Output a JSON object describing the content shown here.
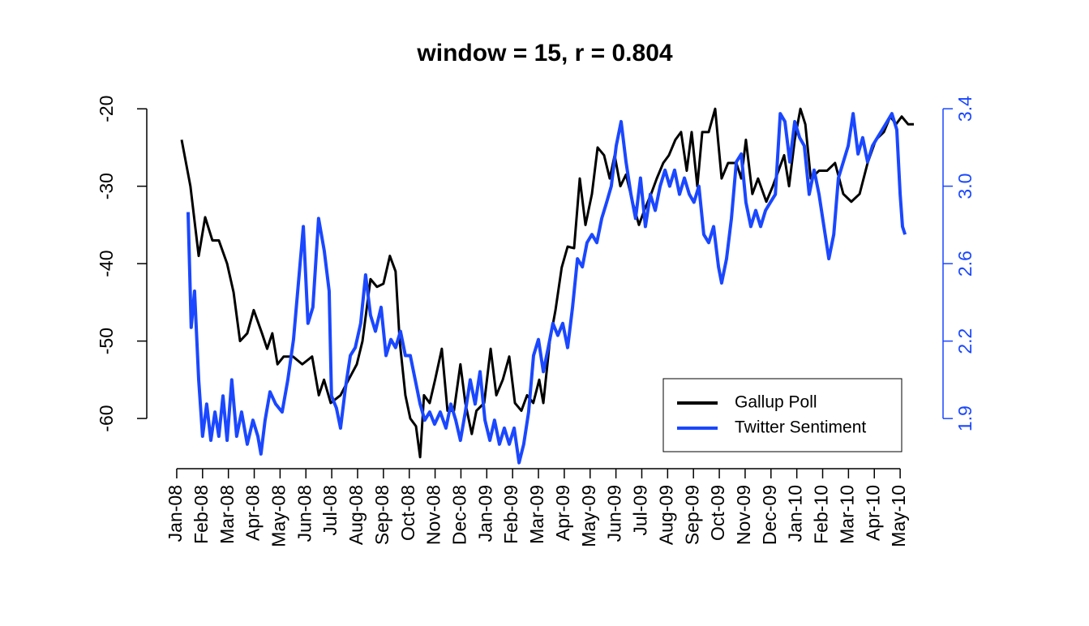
{
  "chart_data": {
    "type": "line",
    "title": "window = 15, r = 0.804",
    "xlim": [
      -0.94,
      29.66
    ],
    "xticks": [
      {
        "value": 0,
        "label": "Jan-08"
      },
      {
        "value": 1,
        "label": "Feb-08"
      },
      {
        "value": 2,
        "label": "Mar-08"
      },
      {
        "value": 3,
        "label": "Apr-08"
      },
      {
        "value": 4,
        "label": "May-08"
      },
      {
        "value": 5,
        "label": "Jun-08"
      },
      {
        "value": 6,
        "label": "Jul-08"
      },
      {
        "value": 7,
        "label": "Aug-08"
      },
      {
        "value": 8,
        "label": "Sep-08"
      },
      {
        "value": 9,
        "label": "Oct-08"
      },
      {
        "value": 10,
        "label": "Nov-08"
      },
      {
        "value": 11,
        "label": "Dec-08"
      },
      {
        "value": 12,
        "label": "Jan-09"
      },
      {
        "value": 13,
        "label": "Feb-09"
      },
      {
        "value": 14,
        "label": "Mar-09"
      },
      {
        "value": 15,
        "label": "Apr-09"
      },
      {
        "value": 16,
        "label": "May-09"
      },
      {
        "value": 17,
        "label": "Jun-09"
      },
      {
        "value": 18,
        "label": "Jul-09"
      },
      {
        "value": 19,
        "label": "Aug-09"
      },
      {
        "value": 20,
        "label": "Sep-09"
      },
      {
        "value": 21,
        "label": "Oct-09"
      },
      {
        "value": 22,
        "label": "Nov-09"
      },
      {
        "value": 23,
        "label": "Dec-09"
      },
      {
        "value": 24,
        "label": "Jan-10"
      },
      {
        "value": 25,
        "label": "Feb-10"
      },
      {
        "value": 26,
        "label": "Mar-10"
      },
      {
        "value": 27,
        "label": "Apr-10"
      },
      {
        "value": 28,
        "label": "May-10"
      }
    ],
    "ylim": [
      -66.8,
      -18.2
    ],
    "yticks": [
      -20,
      -30,
      -40,
      -50,
      -60
    ],
    "y2lim": [
      1.602,
      3.448
    ],
    "y2ticks": [
      {
        "value": 3.38,
        "label": "3.4"
      },
      {
        "value": 3.0,
        "label": "3.0"
      },
      {
        "value": 2.62,
        "label": "2.6"
      },
      {
        "value": 2.24,
        "label": "2.2"
      },
      {
        "value": 1.86,
        "label": "1.9"
      }
    ],
    "y2color": "#1a47ff",
    "legend": "bottomright",
    "series": [
      {
        "name": "Gallup Poll",
        "color": "#000000",
        "x": [
          0.19,
          0.53,
          0.85,
          1.1,
          1.38,
          1.63,
          1.95,
          2.2,
          2.45,
          2.73,
          2.98,
          3.3,
          3.5,
          3.7,
          3.9,
          4.14,
          4.5,
          4.86,
          5.24,
          5.5,
          5.7,
          5.96,
          6.34,
          6.65,
          6.97,
          7.19,
          7.5,
          7.75,
          8.0,
          8.25,
          8.47,
          8.63,
          8.85,
          9.04,
          9.26,
          9.42,
          9.57,
          9.79,
          10.0,
          10.26,
          10.48,
          10.73,
          10.98,
          11.17,
          11.42,
          11.6,
          11.9,
          12.15,
          12.37,
          12.62,
          12.87,
          13.09,
          13.34,
          13.56,
          13.8,
          14.03,
          14.19,
          14.44,
          14.66,
          14.9,
          15.13,
          15.38,
          15.6,
          15.82,
          16.07,
          16.29,
          16.54,
          16.76,
          16.95,
          17.17,
          17.39,
          17.64,
          17.89,
          18.11,
          18.36,
          18.58,
          18.83,
          19.05,
          19.3,
          19.52,
          19.74,
          19.93,
          20.15,
          20.34,
          20.59,
          20.84,
          21.09,
          21.34,
          21.66,
          21.85,
          22.03,
          22.28,
          22.5,
          22.82,
          23.07,
          23.29,
          23.51,
          23.7,
          23.92,
          24.14,
          24.33,
          24.54,
          24.86,
          25.17,
          25.48,
          25.8,
          26.11,
          26.43,
          26.74,
          27.06,
          27.37,
          27.62,
          27.84,
          28.06,
          28.31,
          28.53
        ],
        "values": [
          -24,
          -30,
          -39,
          -34,
          -37,
          -37,
          -40,
          -43.7,
          -50,
          -49,
          -46,
          -49,
          -51,
          -49,
          -53,
          -52,
          -52,
          -53,
          -52,
          -57,
          -55,
          -58,
          -57,
          -55,
          -53,
          -50,
          -42,
          -43,
          -42.6,
          -39,
          -41,
          -50,
          -57,
          -60,
          -61,
          -65,
          -57,
          -58,
          -55,
          -51,
          -59,
          -59,
          -53,
          -58,
          -62,
          -59,
          -58,
          -51,
          -57,
          -55,
          -52,
          -58,
          -59,
          -57,
          -58,
          -55,
          -58,
          -50,
          -46,
          -40.5,
          -37.8,
          -38,
          -29,
          -35,
          -31,
          -25,
          -26,
          -29,
          -26,
          -30,
          -28.5,
          -32,
          -35,
          -33,
          -31,
          -29,
          -27,
          -26,
          -24,
          -23,
          -28,
          -23,
          -30,
          -23,
          -23,
          -20,
          -29,
          -27,
          -27,
          -29,
          -24,
          -31,
          -29,
          -32,
          -30,
          -28,
          -26,
          -30,
          -24,
          -20,
          -22,
          -29,
          -28,
          -28,
          -27,
          -31,
          -32,
          -31,
          -27,
          -24,
          -23,
          -21,
          -22,
          -21,
          -22,
          -22
        ]
      },
      {
        "name": "Twitter Sentiment",
        "color": "#1a47ff",
        "axis": "y2",
        "x": [
          0.44,
          0.56,
          0.69,
          0.85,
          1.0,
          1.16,
          1.32,
          1.48,
          1.63,
          1.79,
          1.95,
          2.13,
          2.32,
          2.51,
          2.73,
          2.95,
          3.14,
          3.26,
          3.42,
          3.61,
          3.83,
          4.08,
          4.3,
          4.52,
          4.71,
          4.9,
          5.08,
          5.27,
          5.49,
          5.71,
          5.9,
          5.99,
          6.18,
          6.34,
          6.53,
          6.72,
          6.91,
          7.12,
          7.31,
          7.5,
          7.69,
          7.91,
          8.1,
          8.29,
          8.47,
          8.66,
          8.85,
          9.04,
          9.23,
          9.42,
          9.6,
          9.79,
          9.98,
          10.2,
          10.42,
          10.61,
          10.8,
          10.98,
          11.17,
          11.36,
          11.55,
          11.74,
          11.93,
          12.12,
          12.3,
          12.49,
          12.68,
          12.87,
          13.06,
          13.25,
          13.43,
          13.62,
          13.81,
          14.0,
          14.19,
          14.38,
          14.56,
          14.75,
          14.94,
          15.13,
          15.32,
          15.51,
          15.7,
          15.88,
          16.07,
          16.26,
          16.45,
          16.64,
          16.82,
          17.01,
          17.2,
          17.39,
          17.58,
          17.76,
          17.95,
          18.14,
          18.33,
          18.52,
          18.71,
          18.9,
          19.08,
          19.27,
          19.46,
          19.65,
          19.84,
          20.02,
          20.21,
          20.4,
          20.59,
          20.78,
          20.97,
          21.09,
          21.28,
          21.47,
          21.66,
          21.85,
          22.03,
          22.22,
          22.41,
          22.6,
          22.79,
          22.98,
          23.17,
          23.36,
          23.54,
          23.73,
          23.92,
          24.11,
          24.29,
          24.48,
          24.67,
          24.86,
          25.05,
          25.24,
          25.43,
          25.61,
          25.8,
          25.99,
          26.18,
          26.37,
          26.55,
          26.74,
          26.93,
          27.12,
          27.31,
          27.5,
          27.68,
          27.87,
          28.0,
          28.09,
          28.19
        ],
        "values": [
          2.873,
          2.307,
          2.485,
          2.05,
          1.773,
          1.931,
          1.753,
          1.892,
          1.773,
          1.971,
          1.753,
          2.05,
          1.773,
          1.892,
          1.734,
          1.852,
          1.773,
          1.686,
          1.852,
          1.991,
          1.931,
          1.892,
          2.05,
          2.248,
          2.525,
          2.802,
          2.327,
          2.406,
          2.842,
          2.683,
          2.485,
          1.971,
          1.912,
          1.813,
          2.01,
          2.169,
          2.208,
          2.327,
          2.565,
          2.367,
          2.288,
          2.406,
          2.169,
          2.248,
          2.208,
          2.288,
          2.169,
          2.169,
          2.05,
          1.931,
          1.852,
          1.892,
          1.832,
          1.892,
          1.813,
          1.931,
          1.852,
          1.753,
          1.892,
          2.05,
          1.931,
          2.09,
          1.852,
          1.753,
          1.852,
          1.734,
          1.813,
          1.734,
          1.813,
          1.643,
          1.734,
          1.892,
          2.169,
          2.248,
          2.09,
          2.208,
          2.327,
          2.268,
          2.327,
          2.208,
          2.406,
          2.644,
          2.604,
          2.723,
          2.763,
          2.723,
          2.842,
          2.921,
          3.0,
          3.198,
          3.317,
          3.119,
          2.96,
          2.842,
          3.04,
          2.802,
          2.96,
          2.881,
          3.0,
          3.079,
          3.0,
          3.079,
          2.96,
          3.04,
          2.96,
          2.921,
          3.0,
          2.763,
          2.723,
          2.802,
          2.604,
          2.525,
          2.644,
          2.842,
          3.119,
          3.158,
          2.921,
          2.802,
          2.881,
          2.802,
          2.881,
          2.921,
          2.96,
          3.356,
          3.317,
          3.119,
          3.317,
          3.238,
          3.198,
          2.96,
          3.079,
          2.96,
          2.802,
          2.644,
          2.763,
          3.04,
          3.119,
          3.198,
          3.356,
          3.158,
          3.238,
          3.119,
          3.198,
          3.238,
          3.277,
          3.317,
          3.356,
          3.277,
          2.96,
          2.802,
          2.763
        ]
      }
    ]
  }
}
